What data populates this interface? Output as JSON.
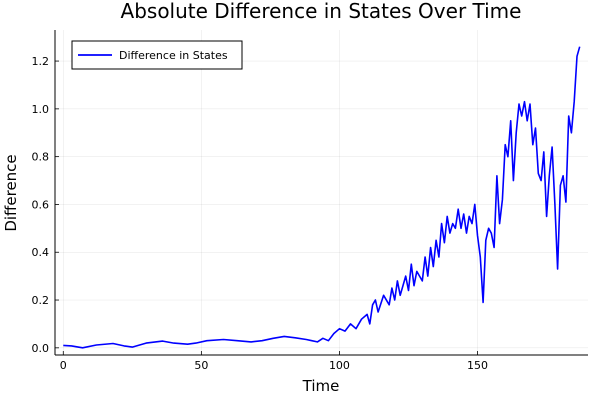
{
  "chart_data": {
    "type": "line",
    "title": "Absolute Difference in States Over Time",
    "xlabel": "Time",
    "ylabel": "Difference",
    "xlim": [
      -3,
      190
    ],
    "ylim": [
      -0.03,
      1.33
    ],
    "xticks": [
      0,
      50,
      100,
      150
    ],
    "yticks": [
      0.0,
      0.2,
      0.4,
      0.6,
      0.8,
      1.0,
      1.2
    ],
    "ytick_labels": [
      "0.0",
      "0.2",
      "0.4",
      "0.6",
      "0.8",
      "1.0",
      "1.2"
    ],
    "grid": true,
    "legend_position": "top-left",
    "series": [
      {
        "name": "Difference in States",
        "color": "#0000ff",
        "x": [
          0,
          3,
          7,
          12,
          18,
          22,
          25,
          30,
          36,
          40,
          45,
          48,
          52,
          58,
          63,
          68,
          72,
          76,
          80,
          84,
          88,
          90,
          92,
          94,
          96,
          98,
          100,
          102,
          104,
          106,
          108,
          110,
          111,
          112,
          113,
          114,
          116,
          118,
          119,
          120,
          121,
          122,
          124,
          125,
          126,
          127,
          128,
          130,
          131,
          132,
          133,
          134,
          135,
          136,
          137,
          138,
          139,
          140,
          141,
          142,
          143,
          144,
          145,
          146,
          147,
          148,
          149,
          150,
          151,
          152,
          153,
          154,
          155,
          156,
          157,
          158,
          159,
          160,
          161,
          162,
          163,
          164,
          165,
          166,
          167,
          168,
          169,
          170,
          171,
          172,
          173,
          174,
          175,
          176,
          177,
          178,
          179,
          180,
          181,
          182,
          183,
          184,
          185,
          186,
          187
        ],
        "y": [
          0.01,
          0.008,
          0.0,
          0.012,
          0.018,
          0.008,
          0.003,
          0.02,
          0.028,
          0.02,
          0.015,
          0.02,
          0.03,
          0.035,
          0.03,
          0.025,
          0.03,
          0.04,
          0.048,
          0.042,
          0.035,
          0.03,
          0.025,
          0.04,
          0.03,
          0.06,
          0.08,
          0.07,
          0.1,
          0.08,
          0.12,
          0.14,
          0.1,
          0.18,
          0.2,
          0.15,
          0.22,
          0.18,
          0.25,
          0.2,
          0.28,
          0.22,
          0.3,
          0.24,
          0.35,
          0.26,
          0.32,
          0.28,
          0.38,
          0.3,
          0.42,
          0.34,
          0.45,
          0.38,
          0.52,
          0.44,
          0.55,
          0.48,
          0.52,
          0.5,
          0.58,
          0.5,
          0.56,
          0.48,
          0.55,
          0.52,
          0.6,
          0.47,
          0.38,
          0.19,
          0.45,
          0.5,
          0.48,
          0.42,
          0.72,
          0.52,
          0.62,
          0.85,
          0.8,
          0.95,
          0.7,
          0.9,
          1.02,
          0.97,
          1.03,
          0.95,
          1.02,
          0.85,
          0.92,
          0.73,
          0.7,
          0.82,
          0.55,
          0.72,
          0.84,
          0.6,
          0.33,
          0.68,
          0.72,
          0.61,
          0.97,
          0.9,
          1.03,
          1.22,
          1.26
        ]
      }
    ]
  }
}
